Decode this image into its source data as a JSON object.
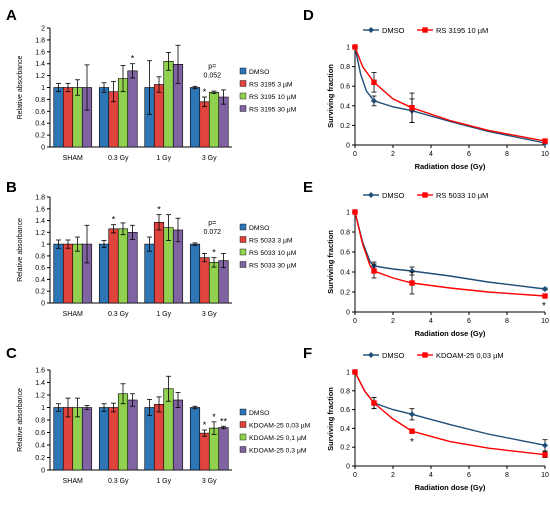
{
  "colors": {
    "dmso": "#2e75b6",
    "red": "#e0443f",
    "green": "#92d050",
    "purple": "#8064a2",
    "line_dmso": "#1f4e79",
    "line_red": "#ff0000",
    "axis": "#000000"
  },
  "chart_data": [
    {
      "panel": "A",
      "type": "bar",
      "categories": [
        "SHAM",
        "0.3 Gy",
        "1 Gy",
        "3 Gy"
      ],
      "ylabel": "Relative absorbance",
      "ylim": [
        0,
        2
      ],
      "yticks": [
        0,
        0.2,
        0.4,
        0.6,
        0.8,
        1,
        1.2,
        1.4,
        1.6,
        1.8,
        2
      ],
      "series": [
        {
          "name": "DMSO",
          "values": [
            1.0,
            1.0,
            1.0,
            1.0
          ],
          "errors": [
            0.07,
            0.08,
            0.45,
            0.02
          ]
        },
        {
          "name": "RS 3195 3 µM",
          "values": [
            1.0,
            0.93,
            1.05,
            0.76
          ],
          "errors": [
            0.07,
            0.17,
            0.13,
            0.08
          ]
        },
        {
          "name": "RS 3195 10 µM",
          "values": [
            1.0,
            1.15,
            1.44,
            0.92
          ],
          "errors": [
            0.13,
            0.22,
            0.15,
            0.02
          ]
        },
        {
          "name": "RS 3195 30 µM",
          "values": [
            1.0,
            1.28,
            1.39,
            0.84
          ],
          "errors": [
            0.38,
            0.12,
            0.32,
            0.12
          ]
        }
      ],
      "annotations": [
        {
          "text": "*",
          "category": "0.3 Gy",
          "series": "RS 3195 30 µM"
        },
        {
          "text": "*",
          "category": "3 Gy",
          "series": "RS 3195 3 µM"
        },
        {
          "text": "p=",
          "category": "3 Gy"
        },
        {
          "text": "0.052",
          "category": "3 Gy"
        }
      ],
      "legend_position": "right"
    },
    {
      "panel": "B",
      "type": "bar",
      "categories": [
        "SHAM",
        "0.3 Gy",
        "1 Gy",
        "3 Gy"
      ],
      "ylabel": "Relative absorbance",
      "ylim": [
        0,
        1.8
      ],
      "yticks": [
        0,
        0.2,
        0.4,
        0.6,
        0.8,
        1,
        1.2,
        1.4,
        1.6,
        1.8
      ],
      "series": [
        {
          "name": "DMSO",
          "values": [
            1.0,
            1.0,
            1.0,
            1.0
          ],
          "errors": [
            0.07,
            0.06,
            0.12,
            0.02
          ]
        },
        {
          "name": "RS 5033 3 µM",
          "values": [
            1.0,
            1.26,
            1.37,
            0.77
          ],
          "errors": [
            0.07,
            0.07,
            0.13,
            0.07
          ]
        },
        {
          "name": "RS 5033 10 µM",
          "values": [
            1.0,
            1.26,
            1.28,
            0.69
          ],
          "errors": [
            0.12,
            0.1,
            0.22,
            0.08
          ]
        },
        {
          "name": "RS 5033 30 µM",
          "values": [
            1.0,
            1.2,
            1.24,
            0.72
          ],
          "errors": [
            0.32,
            0.12,
            0.2,
            0.12
          ]
        }
      ],
      "annotations": [
        {
          "text": "*",
          "category": "0.3 Gy",
          "series": "RS 5033 3 µM"
        },
        {
          "text": "*",
          "category": "1 Gy",
          "series": "RS 5033 3 µM"
        },
        {
          "text": "*",
          "category": "3 Gy",
          "series": "RS 5033 10 µM"
        },
        {
          "text": "p=",
          "category": "3 Gy"
        },
        {
          "text": "0.072",
          "category": "3 Gy"
        }
      ],
      "legend_position": "right"
    },
    {
      "panel": "C",
      "type": "bar",
      "categories": [
        "SHAM",
        "0.3 Gy",
        "1 Gy",
        "3 Gy"
      ],
      "ylabel": "Relative absorbance",
      "ylim": [
        0,
        1.6
      ],
      "yticks": [
        0,
        0.2,
        0.4,
        0.6,
        0.8,
        1,
        1.2,
        1.4,
        1.6
      ],
      "series": [
        {
          "name": "DMSO",
          "values": [
            1.0,
            1.0,
            1.0,
            1.0
          ],
          "errors": [
            0.06,
            0.06,
            0.13,
            0.02
          ]
        },
        {
          "name": "KDOAM-25 0,03 µM",
          "values": [
            1.0,
            1.0,
            1.05,
            0.59
          ],
          "errors": [
            0.15,
            0.07,
            0.12,
            0.05
          ]
        },
        {
          "name": "KDOAM-25 0,1 µM",
          "values": [
            1.0,
            1.22,
            1.3,
            0.67
          ],
          "errors": [
            0.15,
            0.16,
            0.2,
            0.1
          ]
        },
        {
          "name": "KDOAM-25 0,3 µM",
          "values": [
            1.0,
            1.12,
            1.12,
            0.68
          ],
          "errors": [
            0.03,
            0.1,
            0.12,
            0.02
          ]
        }
      ],
      "annotations": [
        {
          "text": "*",
          "category": "3 Gy",
          "series": "KDOAM-25 0,03 µM"
        },
        {
          "text": "*",
          "category": "3 Gy",
          "series": "KDOAM-25 0,1 µM"
        },
        {
          "text": "**",
          "category": "3 Gy",
          "series": "KDOAM-25 0,3 µM"
        }
      ],
      "legend_position": "right"
    },
    {
      "panel": "D",
      "type": "line",
      "xlabel": "Radiation dose (Gy)",
      "ylabel": "Surviving fraction",
      "xlim": [
        0,
        10
      ],
      "xticks": [
        0,
        2,
        4,
        6,
        8,
        10
      ],
      "ylim": [
        0,
        1
      ],
      "yticks": [
        0,
        0.2,
        0.4,
        0.6,
        0.8,
        1
      ],
      "series": [
        {
          "name": "DMSO",
          "x": [
            0,
            1,
            3,
            10
          ],
          "y": [
            1.0,
            0.45,
            0.35,
            0.02
          ],
          "errors": [
            0.0,
            0.05,
            0.12,
            0.01
          ],
          "fit": [
            [
              0,
              1.0
            ],
            [
              0.3,
              0.72
            ],
            [
              0.6,
              0.55
            ],
            [
              1,
              0.45
            ],
            [
              2,
              0.39
            ],
            [
              3,
              0.35
            ],
            [
              5,
              0.24
            ],
            [
              7,
              0.14
            ],
            [
              10,
              0.02
            ]
          ]
        },
        {
          "name": "RS 3195 10 µM",
          "x": [
            0,
            1,
            3,
            10
          ],
          "y": [
            1.0,
            0.64,
            0.38,
            0.04
          ],
          "errors": [
            0.0,
            0.1,
            0.15,
            0.02
          ],
          "fit": [
            [
              0,
              1.0
            ],
            [
              0.4,
              0.8
            ],
            [
              1,
              0.64
            ],
            [
              2,
              0.47
            ],
            [
              3,
              0.38
            ],
            [
              5,
              0.25
            ],
            [
              7,
              0.15
            ],
            [
              10,
              0.04
            ]
          ]
        }
      ],
      "annotations": [],
      "legend_position": "top"
    },
    {
      "panel": "E",
      "type": "line",
      "xlabel": "Radiation dose (Gy)",
      "ylabel": "Surviving fraction",
      "xlim": [
        0,
        10
      ],
      "xticks": [
        0,
        2,
        4,
        6,
        8,
        10
      ],
      "ylim": [
        0,
        1
      ],
      "yticks": [
        0,
        0.2,
        0.4,
        0.6,
        0.8,
        1
      ],
      "series": [
        {
          "name": "DMSO",
          "x": [
            0,
            1,
            3,
            10
          ],
          "y": [
            1.0,
            0.46,
            0.41,
            0.23
          ],
          "errors": [
            0.0,
            0.04,
            0.04,
            0.01
          ],
          "fit": [
            [
              0,
              1.0
            ],
            [
              0.4,
              0.7
            ],
            [
              0.8,
              0.5
            ],
            [
              1,
              0.46
            ],
            [
              2,
              0.43
            ],
            [
              3,
              0.41
            ],
            [
              5,
              0.36
            ],
            [
              7,
              0.3
            ],
            [
              10,
              0.23
            ]
          ]
        },
        {
          "name": "RS 5033 10 µM",
          "x": [
            0,
            1,
            3,
            10
          ],
          "y": [
            1.0,
            0.41,
            0.29,
            0.16
          ],
          "errors": [
            0.0,
            0.07,
            0.11,
            0.01
          ],
          "fit": [
            [
              0,
              1.0
            ],
            [
              0.4,
              0.68
            ],
            [
              0.8,
              0.46
            ],
            [
              1,
              0.41
            ],
            [
              2,
              0.34
            ],
            [
              3,
              0.29
            ],
            [
              5,
              0.24
            ],
            [
              7,
              0.2
            ],
            [
              10,
              0.16
            ]
          ]
        }
      ],
      "annotations": [
        {
          "text": "*",
          "x": 10,
          "series": "RS 5033 10 µM"
        }
      ],
      "legend_position": "top"
    },
    {
      "panel": "F",
      "type": "line",
      "xlabel": "Radiation dose (Gy)",
      "ylabel": "Surviving fraction",
      "xlim": [
        0,
        10
      ],
      "xticks": [
        0,
        2,
        4,
        6,
        8,
        10
      ],
      "ylim": [
        0,
        1
      ],
      "yticks": [
        0,
        0.2,
        0.4,
        0.6,
        0.8,
        1
      ],
      "series": [
        {
          "name": "DMSO",
          "x": [
            0,
            1,
            3,
            10
          ],
          "y": [
            1.0,
            0.67,
            0.55,
            0.22
          ],
          "errors": [
            0.0,
            0.06,
            0.06,
            0.06
          ],
          "fit": [
            [
              0,
              1.0
            ],
            [
              0.5,
              0.8
            ],
            [
              1,
              0.67
            ],
            [
              2,
              0.6
            ],
            [
              3,
              0.55
            ],
            [
              5,
              0.44
            ],
            [
              7,
              0.34
            ],
            [
              10,
              0.22
            ]
          ]
        },
        {
          "name": "KDOAM-25 0,03 µM",
          "x": [
            0,
            1,
            3,
            10
          ],
          "y": [
            1.0,
            0.67,
            0.37,
            0.12
          ],
          "errors": [
            0.0,
            0.06,
            0.02,
            0.03
          ],
          "fit": [
            [
              0,
              1.0
            ],
            [
              0.5,
              0.8
            ],
            [
              1,
              0.67
            ],
            [
              2,
              0.5
            ],
            [
              3,
              0.37
            ],
            [
              5,
              0.26
            ],
            [
              7,
              0.19
            ],
            [
              10,
              0.12
            ]
          ]
        }
      ],
      "annotations": [
        {
          "text": "*",
          "x": 3,
          "series": "KDOAM-25 0,03 µM"
        }
      ],
      "legend_position": "top"
    }
  ]
}
